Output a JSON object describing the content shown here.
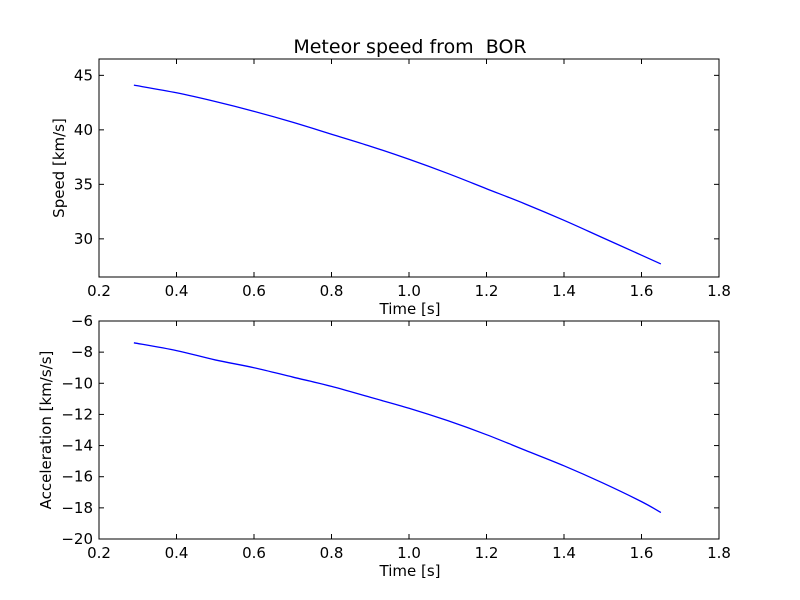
{
  "chart_data": [
    {
      "type": "line",
      "title": "Meteor speed from  BOR",
      "xlabel": "Time [s]",
      "ylabel": "Speed [km/s]",
      "xlim": [
        0.2,
        1.8
      ],
      "ylim": [
        26.5,
        46.5
      ],
      "xticks": [
        "0.2",
        "0.4",
        "0.6",
        "0.8",
        "1.0",
        "1.2",
        "1.4",
        "1.6",
        "1.8"
      ],
      "yticks": [
        "30",
        "35",
        "40",
        "45"
      ],
      "grid": false,
      "line_color": "#0000ff",
      "series": [
        {
          "x": [
            0.29,
            0.4,
            0.5,
            0.6,
            0.7,
            0.8,
            0.9,
            1.0,
            1.1,
            1.2,
            1.3,
            1.4,
            1.5,
            1.6,
            1.65
          ],
          "values": [
            44.1,
            43.4,
            42.6,
            41.7,
            40.7,
            39.6,
            38.5,
            37.3,
            36.0,
            34.6,
            33.2,
            31.7,
            30.1,
            28.5,
            27.7
          ]
        }
      ]
    },
    {
      "type": "line",
      "title": "",
      "xlabel": "Time [s]",
      "ylabel": "Acceleration [km/s/s]",
      "xlim": [
        0.2,
        1.8
      ],
      "ylim": [
        -20,
        -6
      ],
      "xticks": [
        "0.2",
        "0.4",
        "0.6",
        "0.8",
        "1.0",
        "1.2",
        "1.4",
        "1.6",
        "1.8"
      ],
      "yticks": [
        "−6",
        "−8",
        "−10",
        "−12",
        "−14",
        "−16",
        "−18",
        "−20"
      ],
      "grid": false,
      "line_color": "#0000ff",
      "series": [
        {
          "x": [
            0.29,
            0.4,
            0.5,
            0.6,
            0.7,
            0.8,
            0.9,
            1.0,
            1.1,
            1.2,
            1.3,
            1.4,
            1.5,
            1.6,
            1.65
          ],
          "values": [
            -7.4,
            -7.9,
            -8.5,
            -9.0,
            -9.6,
            -10.2,
            -10.9,
            -11.6,
            -12.4,
            -13.3,
            -14.3,
            -15.3,
            -16.4,
            -17.6,
            -18.3
          ]
        }
      ]
    }
  ]
}
